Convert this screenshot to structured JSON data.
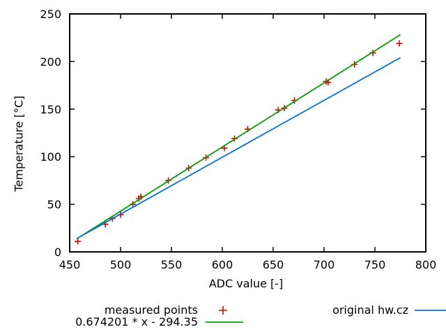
{
  "chart_data": {
    "type": "scatter",
    "title": "",
    "xlabel": "ADC value [-]",
    "ylabel": "Temperature [°C]",
    "xlim": [
      450,
      800
    ],
    "ylim": [
      0,
      250
    ],
    "xticks": [
      450,
      500,
      550,
      600,
      650,
      700,
      750,
      800
    ],
    "yticks": [
      0,
      50,
      100,
      150,
      200,
      250
    ],
    "grid": false,
    "legend_position": "below-plot",
    "colors": {
      "measured": "#dc0000",
      "fit": "#00a000",
      "original": "#0073e0",
      "axis": "#000000",
      "background": "#ffffff"
    },
    "series": [
      {
        "name": "measured points",
        "type": "scatter",
        "marker": "plus",
        "color": "#dc0000",
        "points": [
          [
            458,
            11
          ],
          [
            485,
            29
          ],
          [
            492,
            35
          ],
          [
            500,
            39
          ],
          [
            512,
            50
          ],
          [
            518,
            56
          ],
          [
            520,
            58
          ],
          [
            547,
            75
          ],
          [
            567,
            88
          ],
          [
            584,
            99
          ],
          [
            602,
            109
          ],
          [
            612,
            119
          ],
          [
            625,
            129
          ],
          [
            655,
            149
          ],
          [
            661,
            151
          ],
          [
            671,
            159
          ],
          [
            702,
            179
          ],
          [
            704,
            178
          ],
          [
            730,
            197
          ],
          [
            748,
            209
          ],
          [
            774,
            219
          ]
        ]
      },
      {
        "name": "0.674201 * x - 294.35",
        "type": "line",
        "color": "#00a000",
        "slope": 0.674201,
        "intercept": -294.35,
        "x_range": [
          457,
          775
        ]
      },
      {
        "name": "original hw.cz",
        "type": "line",
        "color": "#0073e0",
        "points": [
          [
            457,
            14
          ],
          [
            775,
            204
          ]
        ]
      }
    ]
  }
}
